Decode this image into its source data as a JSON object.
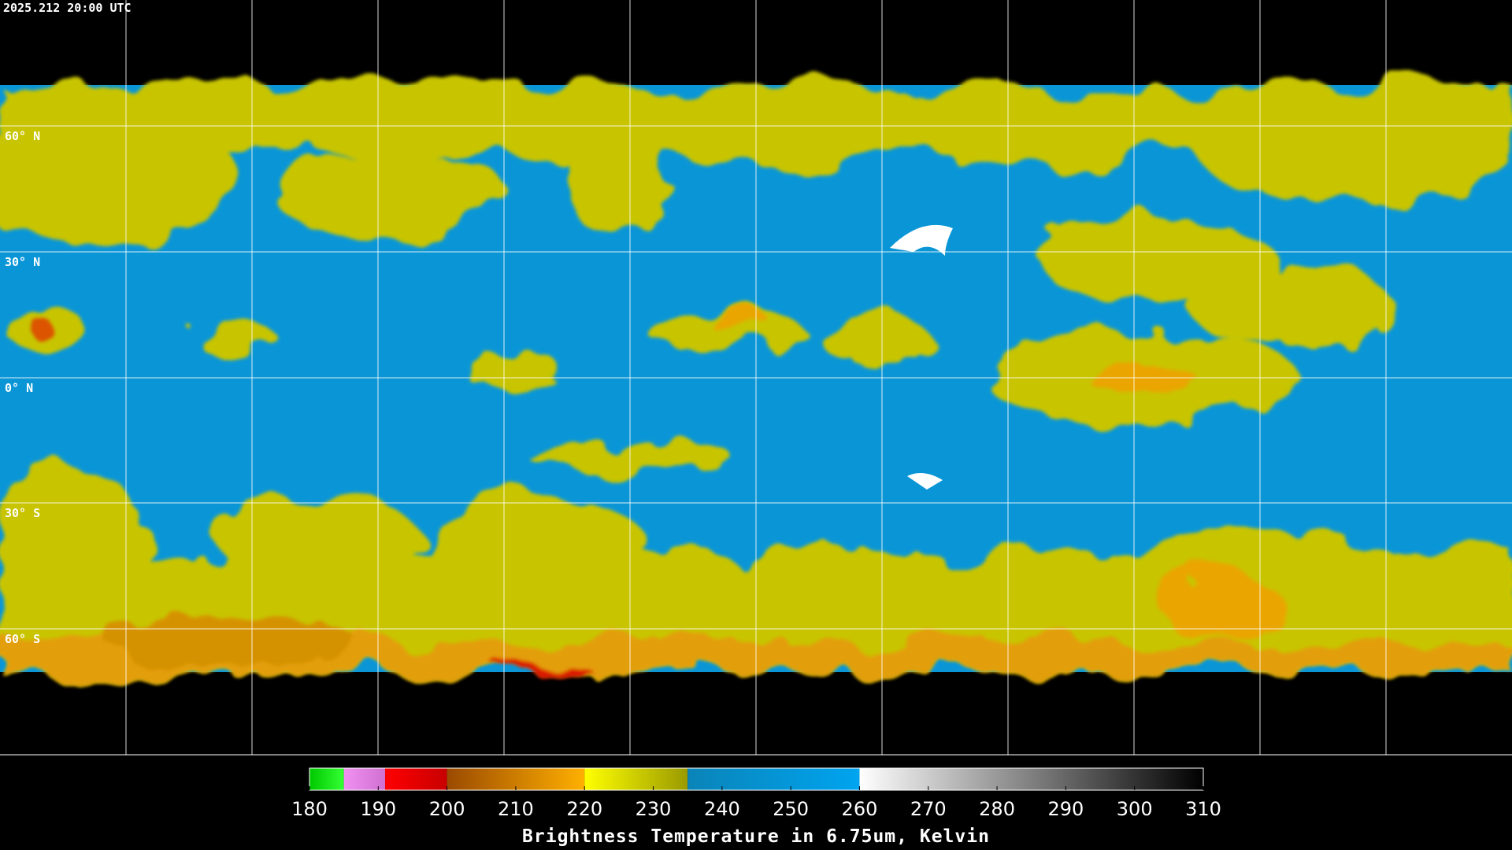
{
  "timestamp": "2025.212 20:00 UTC",
  "latitude_labels": [
    "60° N",
    "30° N",
    "0° N",
    "30° S",
    "60° S"
  ],
  "colorbar": {
    "title": "Brightness Temperature in 6.75um, Kelvin",
    "range": [
      180,
      310
    ],
    "ticks": [
      180,
      190,
      200,
      210,
      220,
      230,
      240,
      250,
      260,
      270,
      280,
      290,
      300,
      310
    ],
    "segments": [
      {
        "from": 180,
        "to": 185,
        "colors": [
          "#00c800",
          "#33ff33"
        ]
      },
      {
        "from": 185,
        "to": 191,
        "colors": [
          "#f090f0",
          "#d070d0"
        ]
      },
      {
        "from": 191,
        "to": 200,
        "colors": [
          "#ff0000",
          "#c80000"
        ]
      },
      {
        "from": 200,
        "to": 220,
        "colors": [
          "#9a4a00",
          "#ffb000"
        ]
      },
      {
        "from": 220,
        "to": 235,
        "colors": [
          "#ffff00",
          "#9a9a00"
        ]
      },
      {
        "from": 235,
        "to": 260,
        "colors": [
          "#0a84b8",
          "#00a4f0"
        ]
      },
      {
        "from": 260,
        "to": 310,
        "colors": [
          "#ffffff",
          "#000000"
        ]
      }
    ]
  }
}
